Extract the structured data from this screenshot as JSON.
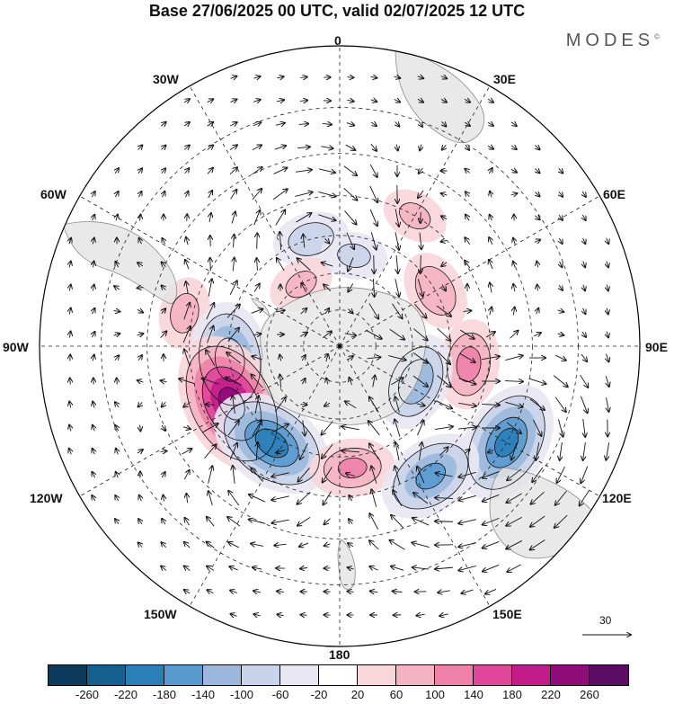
{
  "title": "Base 27/06/2025 00 UTC, valid 02/07/2025 12 UTC",
  "brand": "MODES",
  "brand_mark": "©",
  "longitude_labels": {
    "top": "0",
    "top_right": "30E",
    "right_upper": "60E",
    "right": "90E",
    "right_lower": "120E",
    "bottom_right": "150E",
    "bottom": "180",
    "bottom_left": "150W",
    "left_lower": "120W",
    "left": "90W",
    "left_upper": "60W",
    "top_left": "30W"
  },
  "reference_vector": "30",
  "colorbar": {
    "ticks": [
      "-260",
      "-220",
      "-180",
      "-140",
      "-100",
      "-60",
      "-20",
      "20",
      "60",
      "100",
      "140",
      "180",
      "220",
      "260"
    ],
    "colors": [
      "#0b3a5c",
      "#15608f",
      "#2a7fb8",
      "#5a9bcf",
      "#9bb8dc",
      "#c9d3e9",
      "#e8e6f2",
      "#ffffff",
      "#f8d6da",
      "#f4b3c2",
      "#ee82a9",
      "#e0479a",
      "#c21c8b",
      "#8f0c79",
      "#5a0c63"
    ]
  },
  "anomaly_centres": [
    {
      "lon": 120,
      "lat": -40,
      "value": -190,
      "type": "low"
    },
    {
      "lon": 98,
      "lat": -55,
      "value": 110,
      "type": "high"
    },
    {
      "lon": 60,
      "lat": -60,
      "value": 90,
      "type": "high"
    },
    {
      "lon": 30,
      "lat": -50,
      "value": 60,
      "type": "high"
    },
    {
      "lon": -15,
      "lat": -60,
      "value": -80,
      "type": "low"
    },
    {
      "lon": -32,
      "lat": -70,
      "value": 60,
      "type": "high"
    },
    {
      "lon": 9,
      "lat": -65,
      "value": -60,
      "type": "low"
    },
    {
      "lon": -78,
      "lat": -48,
      "value": 70,
      "type": "high"
    },
    {
      "lon": -97,
      "lat": -60,
      "value": -170,
      "type": "low"
    },
    {
      "lon": -118,
      "lat": -57,
      "value": 240,
      "type": "high"
    },
    {
      "lon": -145,
      "lat": -58,
      "value": -200,
      "type": "low"
    },
    {
      "lon": 174,
      "lat": -57,
      "value": 100,
      "type": "high"
    },
    {
      "lon": 145,
      "lat": -48,
      "value": -150,
      "type": "low"
    },
    {
      "lon": 115,
      "lat": -67,
      "value": -130,
      "type": "low"
    }
  ]
}
